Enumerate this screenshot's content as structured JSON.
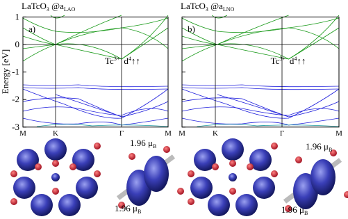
{
  "panels": [
    {
      "title": {
        "main": "LaTcO",
        "sub1": "3",
        "mid": " @a",
        "sub2": "LAO"
      },
      "label": "a)",
      "annotation": {
        "ion": "Tc",
        "ion_sup": "3+",
        "config": "d",
        "config_sup": "4",
        "arrows": "↑↑"
      }
    },
    {
      "title": {
        "main": "LaTcO",
        "sub1": "3",
        "mid": " @a",
        "sub2": "LNO"
      },
      "label": "b)",
      "annotation": {
        "ion": "Tc",
        "ion_sup": "3+",
        "config": "d",
        "config_sup": "4",
        "arrows": "↑↑"
      }
    }
  ],
  "y_axis": {
    "label": "Energy [eV]",
    "ticks": [
      "1",
      "0",
      "-1",
      "-2",
      "-3"
    ]
  },
  "x_ticks": [
    "M",
    "K",
    "Γ",
    "M"
  ],
  "moments": [
    {
      "value": "1.96 μ",
      "unit": "B"
    },
    {
      "value": "1.96 μ",
      "unit": "B"
    },
    {
      "value": "1.96 μ",
      "unit": "B"
    },
    {
      "value": "1.96 μ",
      "unit": "B"
    }
  ]
}
